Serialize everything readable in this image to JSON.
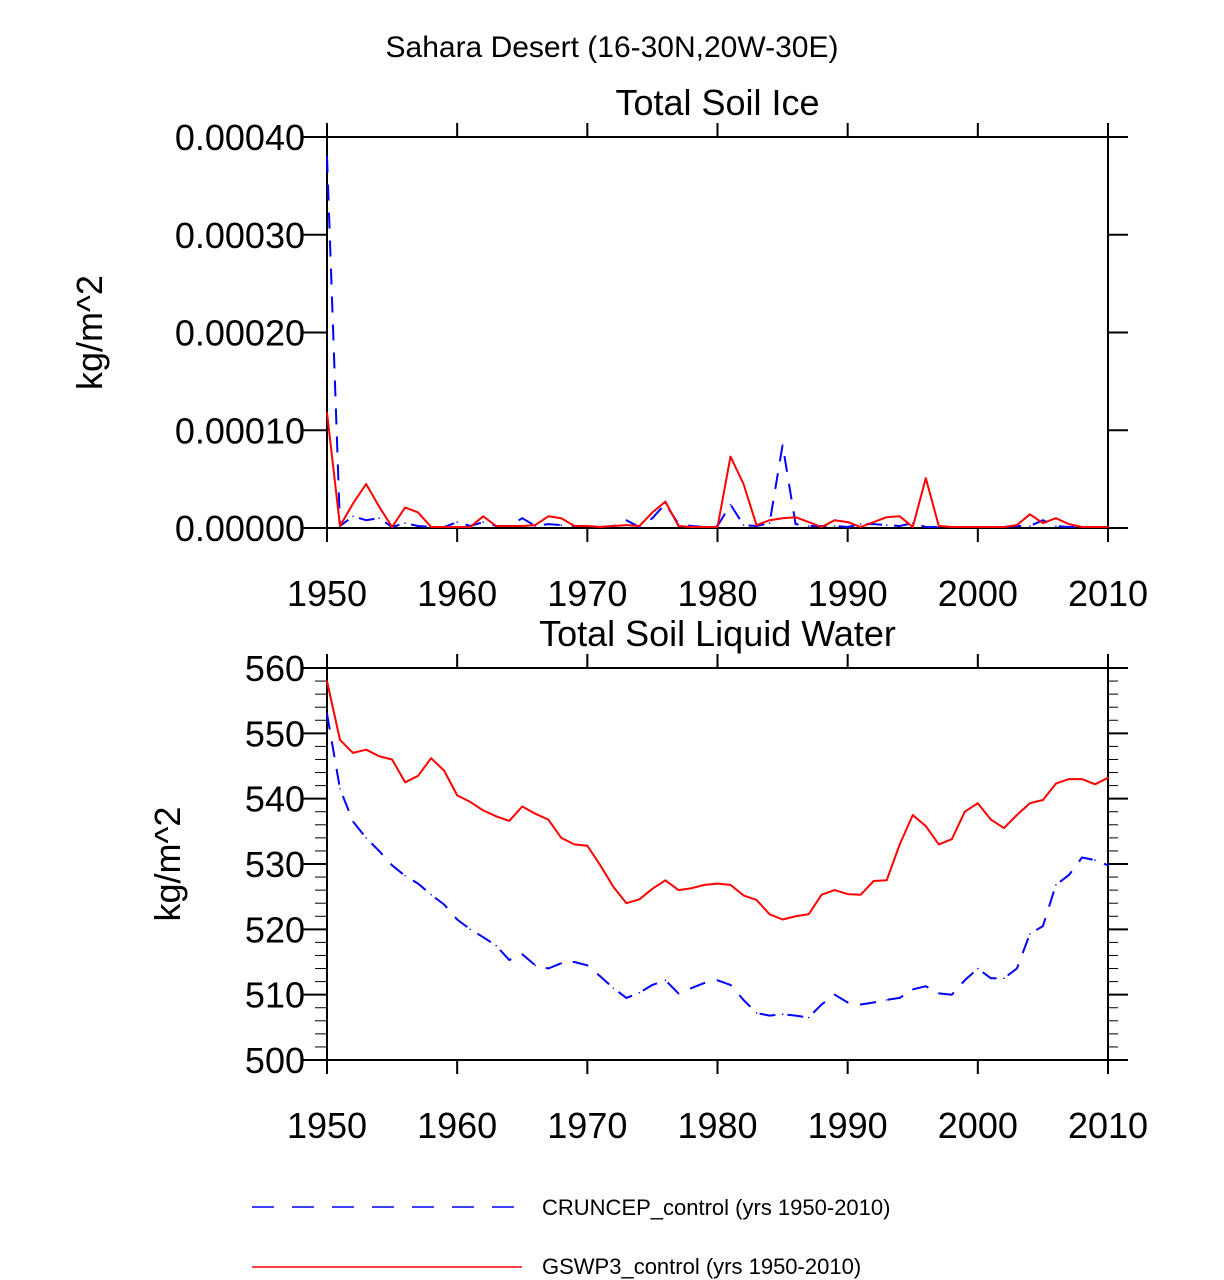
{
  "page_title": "Sahara Desert (16-30N,20W-30E)",
  "colors": {
    "cruncep": "#0000ff",
    "gswp3": "#ff0000",
    "axis": "#000000"
  },
  "legend": [
    {
      "label": "CRUNCEP_control (yrs 1950-2010)",
      "style": "dashed",
      "color": "#0000ff"
    },
    {
      "label": "GSWP3_control (yrs 1950-2010)",
      "style": "solid",
      "color": "#ff0000"
    }
  ],
  "chart_data": [
    {
      "type": "line",
      "title": "Total Soil Ice",
      "xlabel": "",
      "ylabel": "kg/m^2",
      "xlim": [
        1950,
        2010
      ],
      "ylim": [
        0,
        0.0004
      ],
      "x_ticks": [
        1950,
        1960,
        1970,
        1980,
        1990,
        2000,
        2010
      ],
      "x_tick_labels": [
        "1950",
        "1960",
        "1970",
        "1980",
        "1990",
        "2000",
        "2010"
      ],
      "y_ticks": [
        0,
        0.0001,
        0.0002,
        0.0003,
        0.0004
      ],
      "y_tick_labels": [
        "0.00000",
        "0.00010",
        "0.00020",
        "0.00030",
        "0.00040"
      ],
      "x": [
        1950,
        1951,
        1952,
        1953,
        1954,
        1955,
        1956,
        1957,
        1958,
        1959,
        1960,
        1961,
        1962,
        1963,
        1964,
        1965,
        1966,
        1967,
        1968,
        1969,
        1970,
        1971,
        1972,
        1973,
        1974,
        1975,
        1976,
        1977,
        1978,
        1979,
        1980,
        1981,
        1982,
        1983,
        1984,
        1985,
        1986,
        1987,
        1988,
        1989,
        1990,
        1991,
        1992,
        1993,
        1994,
        1995,
        1996,
        1997,
        1998,
        1999,
        2000,
        2001,
        2002,
        2003,
        2004,
        2005,
        2006,
        2007,
        2008,
        2009,
        2010
      ],
      "series": [
        {
          "name": "CRUNCEP_control",
          "style": "dashed",
          "color": "#0000ff",
          "values": [
            0.00038,
            2e-06,
            1.2e-05,
            8e-06,
            1e-05,
            1e-06,
            5e-06,
            2e-06,
            1e-06,
            1e-06,
            6e-06,
            2e-06,
            6e-06,
            2e-06,
            2e-06,
            1e-05,
            2e-06,
            4e-06,
            3e-06,
            2e-06,
            2e-06,
            1e-06,
            2e-06,
            8e-06,
            1e-06,
            1e-05,
            2.5e-05,
            4e-06,
            2e-06,
            1e-06,
            2e-06,
            2.4e-05,
            3e-06,
            2e-06,
            5e-06,
            8.5e-05,
            4e-06,
            2e-06,
            2e-06,
            2e-06,
            1e-06,
            4e-06,
            4e-06,
            3e-06,
            2e-06,
            5e-06,
            1e-06,
            1e-06,
            1e-06,
            1e-06,
            1e-06,
            1e-06,
            1e-06,
            2e-06,
            2e-06,
            8e-06,
            2e-06,
            1e-06,
            1e-06,
            1e-06,
            1e-06
          ]
        },
        {
          "name": "GSWP3_control",
          "style": "solid",
          "color": "#ff0000",
          "values": [
            0.000118,
            2e-06,
            2.5e-05,
            4.5e-05,
            2.2e-05,
            1e-06,
            2.1e-05,
            1.6e-05,
            1e-06,
            1e-06,
            1e-06,
            1e-06,
            1.2e-05,
            2e-06,
            2e-06,
            2e-06,
            3e-06,
            1.2e-05,
            1e-05,
            2e-06,
            2e-06,
            1e-06,
            2e-06,
            3e-06,
            2e-06,
            1.6e-05,
            2.7e-05,
            2e-06,
            1e-06,
            1e-06,
            1e-06,
            7.3e-05,
            4.5e-05,
            3e-06,
            8e-06,
            1e-05,
            1.1e-05,
            6e-06,
            1e-06,
            8e-06,
            6e-06,
            1e-06,
            6e-06,
            1.1e-05,
            1.2e-05,
            1e-06,
            5.1e-05,
            2e-06,
            1e-06,
            1e-06,
            1e-06,
            1e-06,
            1e-06,
            3e-06,
            1.4e-05,
            5e-06,
            1e-05,
            4e-06,
            1e-06,
            1e-06,
            1e-06
          ]
        }
      ]
    },
    {
      "type": "line",
      "title": "Total Soil Liquid Water",
      "xlabel": "",
      "ylabel": "kg/m^2",
      "xlim": [
        1950,
        2010
      ],
      "ylim": [
        500,
        560
      ],
      "x_ticks": [
        1950,
        1960,
        1970,
        1980,
        1990,
        2000,
        2010
      ],
      "x_tick_labels": [
        "1950",
        "1960",
        "1970",
        "1980",
        "1990",
        "2000",
        "2010"
      ],
      "y_ticks": [
        500,
        510,
        520,
        530,
        540,
        550,
        560
      ],
      "y_tick_labels": [
        "500",
        "510",
        "520",
        "530",
        "540",
        "550",
        "560"
      ],
      "x": [
        1950,
        1951,
        1952,
        1953,
        1954,
        1955,
        1956,
        1957,
        1958,
        1959,
        1960,
        1961,
        1962,
        1963,
        1964,
        1965,
        1966,
        1967,
        1968,
        1969,
        1970,
        1971,
        1972,
        1973,
        1974,
        1975,
        1976,
        1977,
        1978,
        1979,
        1980,
        1981,
        1982,
        1983,
        1984,
        1985,
        1986,
        1987,
        1988,
        1989,
        1990,
        1991,
        1992,
        1993,
        1994,
        1995,
        1996,
        1997,
        1998,
        1999,
        2000,
        2001,
        2002,
        2003,
        2004,
        2005,
        2006,
        2007,
        2008,
        2009,
        2010
      ],
      "series": [
        {
          "name": "CRUNCEP_control",
          "style": "dashed",
          "color": "#0000ff",
          "values": [
            553,
            541.5,
            536.5,
            534,
            532,
            529.8,
            528.2,
            527,
            525.3,
            523.8,
            521.5,
            520,
            518.8,
            517.5,
            515.3,
            516.2,
            514.5,
            514,
            514.8,
            515,
            514.5,
            512.8,
            511,
            509.5,
            510.3,
            511.5,
            512.2,
            510.2,
            511,
            511.8,
            512.2,
            511.5,
            509.2,
            507.2,
            506.8,
            507,
            506.8,
            506.5,
            508.5,
            510,
            508.8,
            508.5,
            508.8,
            509.2,
            509.5,
            510.8,
            511.3,
            510.2,
            510,
            512.2,
            514,
            512.5,
            512.5,
            514,
            519.3,
            520.5,
            526.8,
            528.3,
            531,
            530.6,
            529.8
          ]
        },
        {
          "name": "GSWP3_control",
          "style": "solid",
          "color": "#ff0000",
          "values": [
            558,
            549,
            547,
            547.5,
            546.5,
            546,
            542.5,
            543.5,
            546.2,
            544.3,
            540.5,
            539.5,
            538.2,
            537.3,
            536.6,
            538.8,
            537.7,
            536.8,
            534,
            533,
            532.8,
            529.8,
            526.5,
            524,
            524.6,
            526.2,
            527.5,
            526,
            526.3,
            526.8,
            527,
            526.8,
            525.2,
            524.5,
            522.3,
            521.5,
            522,
            522.3,
            525.3,
            526,
            525.4,
            525.3,
            527.4,
            527.5,
            533,
            537.5,
            535.8,
            533,
            533.8,
            538,
            539.3,
            536.8,
            535.5,
            537.5,
            539.3,
            539.8,
            542.3,
            543,
            543,
            542.2,
            543.2
          ]
        }
      ]
    }
  ]
}
